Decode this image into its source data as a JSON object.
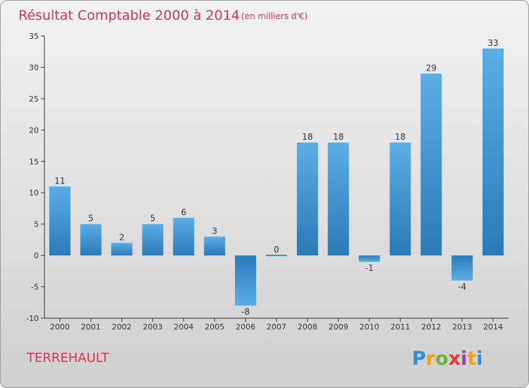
{
  "chart_data": {
    "type": "bar",
    "title": "Résultat Comptable 2000 à 2014",
    "subtitle": "(en milliers d'€)",
    "categories": [
      "2000",
      "2001",
      "2002",
      "2003",
      "2004",
      "2005",
      "2006",
      "2007",
      "2008",
      "2009",
      "2010",
      "2011",
      "2012",
      "2013",
      "2014"
    ],
    "values": [
      11,
      5,
      2,
      5,
      6,
      3,
      -8,
      0,
      18,
      18,
      -1,
      18,
      29,
      -4,
      33
    ],
    "ylim": [
      -10,
      35
    ],
    "yticks": [
      -10,
      -5,
      0,
      5,
      10,
      15,
      20,
      25,
      30,
      35
    ],
    "ytick_labels": [
      "-10",
      "-5",
      "0",
      "5",
      "10",
      "15",
      "20",
      "25",
      "30",
      "35"
    ],
    "xlabel": "",
    "ylabel": "",
    "grid": false,
    "legend": "none"
  },
  "location_label": "TERREHAULT",
  "logo": {
    "letters": [
      "P",
      "r",
      "o",
      "x",
      "i",
      "t",
      "i"
    ],
    "colors": [
      "#2d8fd5",
      "#f2a019",
      "#6db33f",
      "#e53935",
      "#8e44ad",
      "#f2a019",
      "#2d8fd5"
    ]
  },
  "colors": {
    "bar_light": "#5aaee6",
    "bar_dark": "#2a7ab8",
    "title": "#d23a55"
  }
}
